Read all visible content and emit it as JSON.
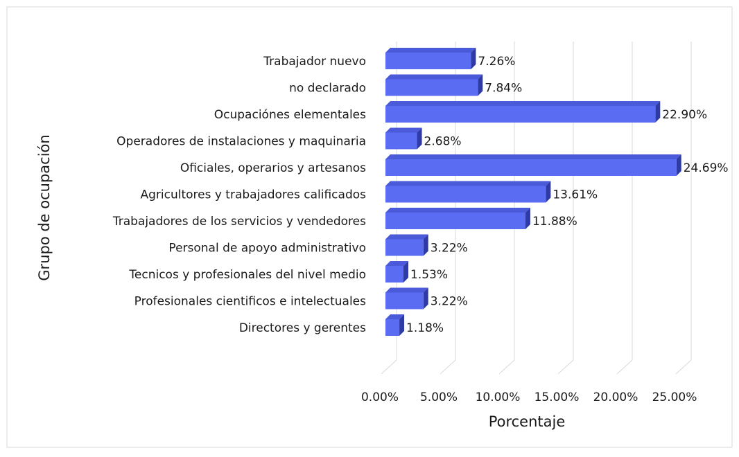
{
  "chart_data": {
    "type": "bar3d_horizontal",
    "x_label": "Porcentaje",
    "y_label": "Grupo de ocupación",
    "categories": [
      "Trabajador nuevo",
      "no declarado",
      "Ocupaciónes elementales",
      "Operadores de instalaciones y maquinaria",
      "Oficiales, operarios y artesanos",
      "Agricultores y trabajadores calificados",
      "Trabajadores de los servicios y vendedores",
      "Personal de apoyo administrativo",
      "Tecnicos y profesionales del nivel medio",
      "Profesionales cientificos e intelectuales",
      "Directores y gerentes"
    ],
    "values": [
      7.26,
      7.84,
      22.9,
      2.68,
      24.69,
      13.61,
      11.88,
      3.22,
      1.53,
      3.22,
      1.18
    ],
    "value_labels": [
      "7.26%",
      "7.84%",
      "22.90%",
      "2.68%",
      "24.69%",
      "13.61%",
      "11.88%",
      "3.22%",
      "1.53%",
      "3.22%",
      "1.18%"
    ],
    "color": "#5a6cf2",
    "xlim": [
      0,
      25
    ],
    "xticks": [
      {
        "value": 0,
        "label": "0.00%"
      },
      {
        "value": 5,
        "label": "5.00%"
      },
      {
        "value": 10,
        "label": "10.00%"
      },
      {
        "value": 15,
        "label": "15.00%"
      },
      {
        "value": 20,
        "label": "20.00%"
      },
      {
        "value": 25,
        "label": "25.00%"
      }
    ],
    "grid": true
  }
}
